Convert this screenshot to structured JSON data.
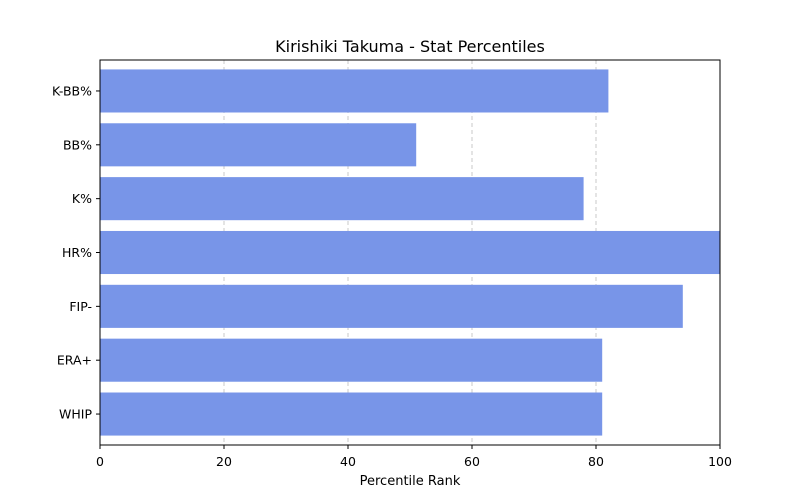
{
  "chart_data": {
    "type": "bar",
    "orientation": "horizontal",
    "title": "Kirishiki Takuma - Stat Percentiles",
    "xlabel": "Percentile Rank",
    "ylabel": "",
    "categories": [
      "K-BB%",
      "BB%",
      "K%",
      "HR%",
      "FIP-",
      "ERA+",
      "WHIP"
    ],
    "values": [
      82,
      51,
      78,
      100,
      94,
      81,
      81
    ],
    "xlim": [
      0,
      100
    ],
    "xticks": [
      0,
      20,
      40,
      60,
      80,
      100
    ],
    "grid": "x-axis dashed",
    "bar_color": "#7895e8",
    "grid_color": "#c8c8c8"
  }
}
